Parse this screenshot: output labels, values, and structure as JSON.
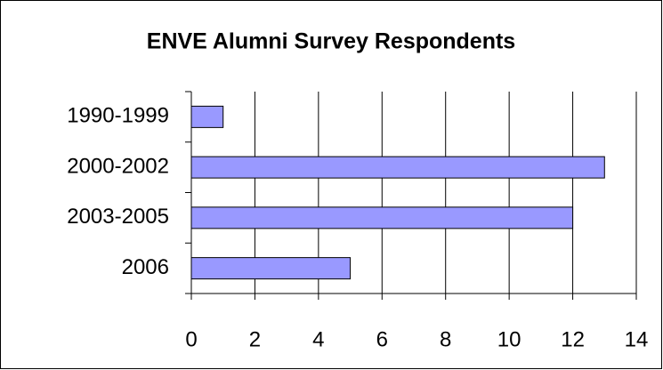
{
  "chart_data": {
    "type": "hbar",
    "title": "ENVE Alumni Survey Respondents",
    "categories": [
      "1990-1999",
      "2000-2002",
      "2003-2005",
      "2006"
    ],
    "values": [
      1,
      13,
      12,
      5
    ],
    "color": "#9999ff",
    "xlim": [
      0,
      14
    ],
    "xticks": [
      0,
      2,
      4,
      6,
      8,
      10,
      12,
      14
    ],
    "grid": true
  }
}
